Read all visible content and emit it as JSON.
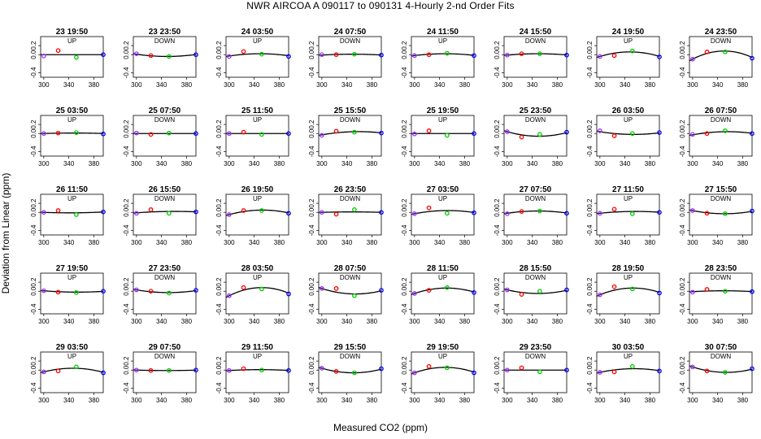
{
  "figure": {
    "title": "NWR   AIRCOA A   090117 to 090131   4-Hourly 2-nd Order Fits",
    "xlabel": "Measured CO2 (ppm)",
    "ylabel": "Deviation from Linear (ppm)"
  },
  "colors": {
    "first": "#9b30ff",
    "second": "#ff0000",
    "third": "#00cc00",
    "fourth": "#0000ff",
    "curve": "#000000"
  },
  "chart_data": {
    "type": "scatter",
    "grid": false,
    "panel_count": 40,
    "layout": "5 rows x 8 columns",
    "xlim": [
      295,
      395
    ],
    "ylim": [
      -0.5,
      0.4
    ],
    "x_ticks": [
      "300",
      "340",
      "380"
    ],
    "y_ticks": [
      "-0.4",
      "0.0",
      "0.2"
    ],
    "x_standards": [
      300,
      323,
      352,
      398
    ],
    "panels": [
      {
        "title": "23 19:50",
        "direction": "UP",
        "y": [
          -0.03,
          0.09,
          -0.06,
          0.0
        ],
        "curve": [
          0,
          0,
          0
        ]
      },
      {
        "title": "23 23:50",
        "direction": "DOWN",
        "y": [
          0.02,
          -0.02,
          -0.04,
          0.0
        ],
        "curve": [
          0.01,
          -0.04,
          0.01
        ]
      },
      {
        "title": "24 03:50",
        "direction": "UP",
        "y": [
          -0.04,
          0.07,
          0.01,
          -0.04
        ],
        "curve": [
          -0.03,
          0.02,
          -0.03
        ]
      },
      {
        "title": "24 07:50",
        "direction": "DOWN",
        "y": [
          0.0,
          0.0,
          0.01,
          -0.01
        ],
        "curve": [
          -0.01,
          0.01,
          -0.01
        ]
      },
      {
        "title": "24 11:50",
        "direction": "UP",
        "y": [
          -0.02,
          0.0,
          0.03,
          -0.02
        ],
        "curve": [
          -0.02,
          0.02,
          -0.02
        ]
      },
      {
        "title": "24 15:50",
        "direction": "DOWN",
        "y": [
          -0.01,
          0.02,
          0.02,
          -0.01
        ],
        "curve": [
          -0.01,
          0.02,
          -0.01
        ]
      },
      {
        "title": "24 19:50",
        "direction": "UP",
        "y": [
          -0.04,
          -0.02,
          0.08,
          -0.05
        ],
        "curve": [
          -0.04,
          0.06,
          -0.05
        ]
      },
      {
        "title": "24 23:50",
        "direction": "DOWN",
        "y": [
          -0.1,
          0.06,
          0.06,
          -0.08
        ],
        "curve": [
          -0.1,
          0.08,
          -0.08
        ]
      },
      {
        "title": "25 03:50",
        "direction": "UP",
        "y": [
          0.0,
          0.01,
          0.02,
          -0.01
        ],
        "curve": [
          0,
          0.01,
          0
        ]
      },
      {
        "title": "25 07:50",
        "direction": "DOWN",
        "y": [
          0.01,
          -0.02,
          0.01,
          0.0
        ],
        "curve": [
          0,
          0,
          0
        ]
      },
      {
        "title": "25 11:50",
        "direction": "UP",
        "y": [
          0.0,
          0.03,
          -0.02,
          0.0
        ],
        "curve": [
          0,
          0,
          0
        ]
      },
      {
        "title": "25 15:50",
        "direction": "DOWN",
        "y": [
          -0.04,
          0.05,
          0.03,
          0.01
        ],
        "curve": [
          -0.03,
          0.04,
          0.01
        ]
      },
      {
        "title": "25 19:50",
        "direction": "UP",
        "y": [
          -0.01,
          0.06,
          -0.04,
          0.0
        ],
        "curve": [
          0,
          0,
          0
        ]
      },
      {
        "title": "25 23:50",
        "direction": "DOWN",
        "y": [
          0.04,
          -0.08,
          -0.02,
          0.03
        ],
        "curve": [
          0.04,
          -0.06,
          0.03
        ]
      },
      {
        "title": "26 03:50",
        "direction": "UP",
        "y": [
          0.06,
          -0.05,
          0.0,
          0.02
        ],
        "curve": [
          0.04,
          -0.02,
          0.02
        ]
      },
      {
        "title": "26 07:50",
        "direction": "DOWN",
        "y": [
          -0.02,
          0.0,
          0.06,
          0.0
        ],
        "curve": [
          -0.03,
          0.04,
          0
        ]
      },
      {
        "title": "26 11:50",
        "direction": "UP",
        "y": [
          0.0,
          0.04,
          -0.05,
          0.01
        ],
        "curve": [
          0,
          -0.01,
          0.01
        ]
      },
      {
        "title": "26 15:50",
        "direction": "DOWN",
        "y": [
          -0.02,
          0.06,
          -0.02,
          0.01
        ],
        "curve": [
          -0.01,
          0.02,
          0.01
        ]
      },
      {
        "title": "26 19:50",
        "direction": "UP",
        "y": [
          -0.05,
          0.04,
          0.04,
          -0.02
        ],
        "curve": [
          -0.05,
          0.05,
          -0.02
        ]
      },
      {
        "title": "26 23:50",
        "direction": "DOWN",
        "y": [
          0.0,
          -0.04,
          0.06,
          0.0
        ],
        "curve": [
          0,
          0.01,
          0
        ]
      },
      {
        "title": "27 03:50",
        "direction": "UP",
        "y": [
          -0.03,
          0.1,
          -0.02,
          -0.01
        ],
        "curve": [
          -0.03,
          0.04,
          -0.01
        ]
      },
      {
        "title": "27 07:50",
        "direction": "DOWN",
        "y": [
          -0.03,
          0.02,
          0.03,
          -0.02
        ],
        "curve": [
          -0.02,
          0.03,
          -0.02
        ]
      },
      {
        "title": "27 11:50",
        "direction": "UP",
        "y": [
          -0.02,
          0.07,
          -0.03,
          0.0
        ],
        "curve": [
          -0.02,
          0.02,
          0
        ]
      },
      {
        "title": "27 15:50",
        "direction": "DOWN",
        "y": [
          0.04,
          -0.02,
          -0.03,
          0.03
        ],
        "curve": [
          0.04,
          -0.03,
          0.03
        ]
      },
      {
        "title": "27 19:50",
        "direction": "UP",
        "y": [
          0.01,
          -0.02,
          -0.03,
          0.0
        ],
        "curve": [
          0.01,
          -0.02,
          0
        ]
      },
      {
        "title": "27 23:50",
        "direction": "DOWN",
        "y": [
          0.03,
          0.0,
          -0.04,
          0.02
        ],
        "curve": [
          0.03,
          -0.03,
          0.02
        ]
      },
      {
        "title": "28 03:50",
        "direction": "UP",
        "y": [
          -0.1,
          0.08,
          0.05,
          -0.06
        ],
        "curve": [
          -0.1,
          0.08,
          -0.06
        ]
      },
      {
        "title": "28 07:50",
        "direction": "DOWN",
        "y": [
          0.06,
          0.06,
          -0.1,
          0.02
        ],
        "curve": [
          0.06,
          -0.06,
          0.02
        ]
      },
      {
        "title": "28 11:50",
        "direction": "UP",
        "y": [
          -0.05,
          0.02,
          0.08,
          -0.03
        ],
        "curve": [
          -0.05,
          0.07,
          -0.03
        ]
      },
      {
        "title": "28 15:50",
        "direction": "DOWN",
        "y": [
          0.03,
          -0.07,
          0.0,
          0.03
        ],
        "curve": [
          0.03,
          -0.05,
          0.03
        ]
      },
      {
        "title": "28 19:50",
        "direction": "UP",
        "y": [
          -0.08,
          0.1,
          0.05,
          -0.04
        ],
        "curve": [
          -0.08,
          0.07,
          -0.04
        ]
      },
      {
        "title": "28 23:50",
        "direction": "DOWN",
        "y": [
          -0.02,
          0.04,
          0.0,
          -0.01
        ],
        "curve": [
          -0.01,
          0.01,
          -0.01
        ]
      },
      {
        "title": "29 03:50",
        "direction": "UP",
        "y": [
          -0.04,
          -0.02,
          0.07,
          -0.06
        ],
        "curve": [
          -0.04,
          0.04,
          -0.06
        ]
      },
      {
        "title": "29 07:50",
        "direction": "DOWN",
        "y": [
          0.0,
          -0.01,
          -0.01,
          0.0
        ],
        "curve": [
          0,
          -0.01,
          0
        ]
      },
      {
        "title": "29 11:50",
        "direction": "UP",
        "y": [
          -0.01,
          0.03,
          0.0,
          -0.01
        ],
        "curve": [
          -0.01,
          0.01,
          -0.01
        ]
      },
      {
        "title": "29 15:50",
        "direction": "DOWN",
        "y": [
          0.04,
          -0.03,
          -0.06,
          0.03
        ],
        "curve": [
          0.04,
          -0.06,
          0.03
        ]
      },
      {
        "title": "29 19:50",
        "direction": "UP",
        "y": [
          -0.06,
          0.08,
          0.05,
          -0.06
        ],
        "curve": [
          -0.06,
          0.06,
          -0.06
        ]
      },
      {
        "title": "29 23:50",
        "direction": "DOWN",
        "y": [
          0.0,
          0.05,
          -0.04,
          0.0
        ],
        "curve": [
          0,
          0,
          0
        ]
      },
      {
        "title": "30 03:50",
        "direction": "UP",
        "y": [
          -0.05,
          -0.04,
          0.08,
          -0.02
        ],
        "curve": [
          -0.05,
          0.03,
          -0.02
        ]
      },
      {
        "title": "30 07:50",
        "direction": "DOWN",
        "y": [
          0.07,
          -0.02,
          -0.05,
          0.03
        ],
        "curve": [
          0.07,
          -0.05,
          0.03
        ]
      }
    ]
  }
}
